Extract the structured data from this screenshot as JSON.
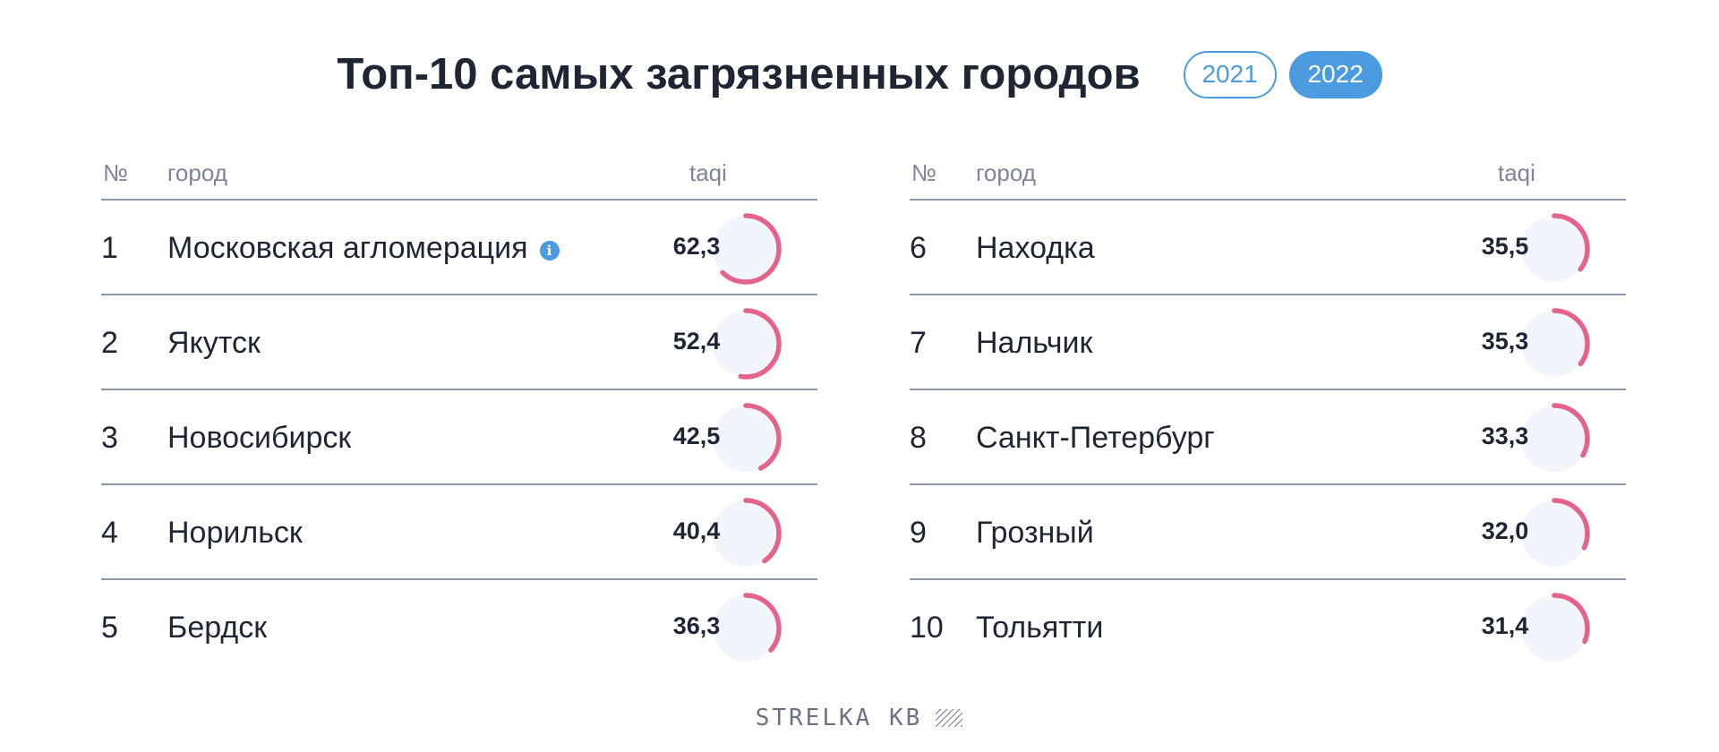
{
  "title": "Топ-10 самых загрязненных городов",
  "years": [
    {
      "label": "2021",
      "active": false
    },
    {
      "label": "2022",
      "active": true
    }
  ],
  "columns": {
    "num": "№",
    "city": "город",
    "value": "taqi"
  },
  "tables": [
    {
      "rows": [
        {
          "num": "1",
          "city": "Московская агломерация",
          "value": "62,3",
          "info": true
        },
        {
          "num": "2",
          "city": "Якутск",
          "value": "52,4"
        },
        {
          "num": "3",
          "city": "Новосибирск",
          "value": "42,5"
        },
        {
          "num": "4",
          "city": "Норильск",
          "value": "40,4"
        },
        {
          "num": "5",
          "city": "Бердск",
          "value": "36,3"
        }
      ]
    },
    {
      "rows": [
        {
          "num": "6",
          "city": "Находка",
          "value": "35,5"
        },
        {
          "num": "7",
          "city": "Нальчик",
          "value": "35,3"
        },
        {
          "num": "8",
          "city": "Санкт-Петербург",
          "value": "33,3"
        },
        {
          "num": "9",
          "city": "Грозный",
          "value": "32,0"
        },
        {
          "num": "10",
          "city": "Тольятти",
          "value": "31,4"
        }
      ]
    }
  ],
  "info_icon": {
    "name": "info-icon",
    "glyph": "i"
  },
  "gauge_max": 100,
  "colors": {
    "accent": "#4a9be0",
    "gauge": "#e5638a",
    "gauge_bg": "#f2f5fb"
  },
  "footer": {
    "brand": "STRELKA KB",
    "icon": "hatched-square-logo"
  }
}
